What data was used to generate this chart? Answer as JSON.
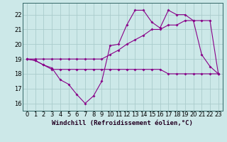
{
  "title": "",
  "xlabel": "Windchill (Refroidissement éolien,°C)",
  "background_color": "#cce8e8",
  "grid_color": "#aacccc",
  "line_color": "#880088",
  "x_hours": [
    0,
    1,
    2,
    3,
    4,
    5,
    6,
    7,
    8,
    9,
    10,
    11,
    12,
    13,
    14,
    15,
    16,
    17,
    18,
    19,
    20,
    21,
    22,
    23
  ],
  "series1": [
    19.0,
    18.9,
    18.6,
    18.4,
    17.6,
    17.3,
    16.6,
    16.0,
    16.5,
    17.5,
    19.9,
    20.0,
    21.3,
    22.3,
    22.3,
    21.5,
    21.1,
    22.3,
    22.0,
    22.0,
    21.6,
    19.3,
    18.5,
    18.0
  ],
  "series2": [
    19.0,
    18.9,
    18.6,
    18.3,
    18.3,
    18.3,
    18.3,
    18.3,
    18.3,
    18.3,
    18.3,
    18.3,
    18.3,
    18.3,
    18.3,
    18.3,
    18.3,
    18.0,
    18.0,
    18.0,
    18.0,
    18.0,
    18.0,
    18.0
  ],
  "series3": [
    19.0,
    19.0,
    19.0,
    19.0,
    19.0,
    19.0,
    19.0,
    19.0,
    19.0,
    19.0,
    19.3,
    19.6,
    20.0,
    20.3,
    20.6,
    21.0,
    21.0,
    21.3,
    21.3,
    21.6,
    21.6,
    21.6,
    21.6,
    18.0
  ],
  "ylim": [
    15.5,
    22.8
  ],
  "yticks": [
    16,
    17,
    18,
    19,
    20,
    21,
    22
  ],
  "xlim": [
    -0.5,
    23.5
  ],
  "xlabel_fontsize": 6.5,
  "tick_fontsize": 6,
  "xlabel_color": "#220022",
  "spine_color": "#336666"
}
